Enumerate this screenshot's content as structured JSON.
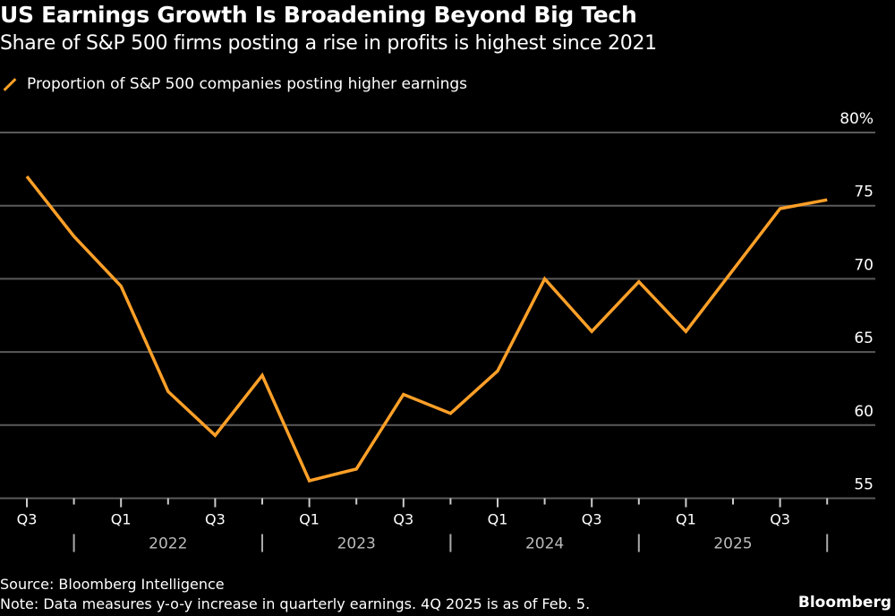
{
  "title": "US Earnings Growth Is Broadening Beyond Big Tech",
  "subtitle": "Share of S&P 500 firms posting a rise in profits is highest since 2021",
  "source": "Source: Bloomberg Intelligence",
  "note": "Note: Data measures y-o-y increase in quarterly earnings. 4Q 2025 is as of Feb. 5.",
  "brand": "Bloomberg",
  "colors": {
    "series": "#ffa028",
    "background": "#000000",
    "grid": "#5a5a5a"
  },
  "chart_data": {
    "type": "line",
    "title": "US Earnings Growth Is Broadening Beyond Big Tech",
    "legend": [
      "Proportion of S&P 500 companies posting higher earnings"
    ],
    "legend_placement": "top-left",
    "grid": true,
    "y_axis_side": "right",
    "ylim": [
      55,
      80
    ],
    "yticks": [
      55,
      60,
      65,
      70,
      75,
      80
    ],
    "ytick_labels": [
      "55",
      "60",
      "65",
      "70",
      "75",
      "80%"
    ],
    "x": [
      "Q3 2021",
      "Q4 2021",
      "Q1 2022",
      "Q2 2022",
      "Q3 2022",
      "Q4 2022",
      "Q1 2023",
      "Q2 2023",
      "Q3 2023",
      "Q4 2023",
      "Q1 2024",
      "Q2 2024",
      "Q3 2024",
      "Q4 2024",
      "Q1 2025",
      "Q2 2025",
      "Q3 2025",
      "Q4 2025"
    ],
    "xtick_labels": [
      "Q3",
      "",
      "Q1",
      "",
      "Q3",
      "",
      "Q1",
      "",
      "Q3",
      "",
      "Q1",
      "",
      "Q3",
      "",
      "Q1",
      "",
      "Q3",
      ""
    ],
    "year_labels": [
      "2022",
      "2023",
      "2024",
      "2025"
    ],
    "series": [
      {
        "name": "Proportion of S&P 500 companies posting higher earnings",
        "values": [
          77.0,
          72.9,
          69.5,
          62.3,
          59.3,
          63.4,
          56.2,
          57.0,
          62.1,
          60.8,
          63.7,
          70.0,
          66.4,
          69.8,
          66.4,
          70.6,
          74.8,
          75.4
        ]
      }
    ]
  }
}
